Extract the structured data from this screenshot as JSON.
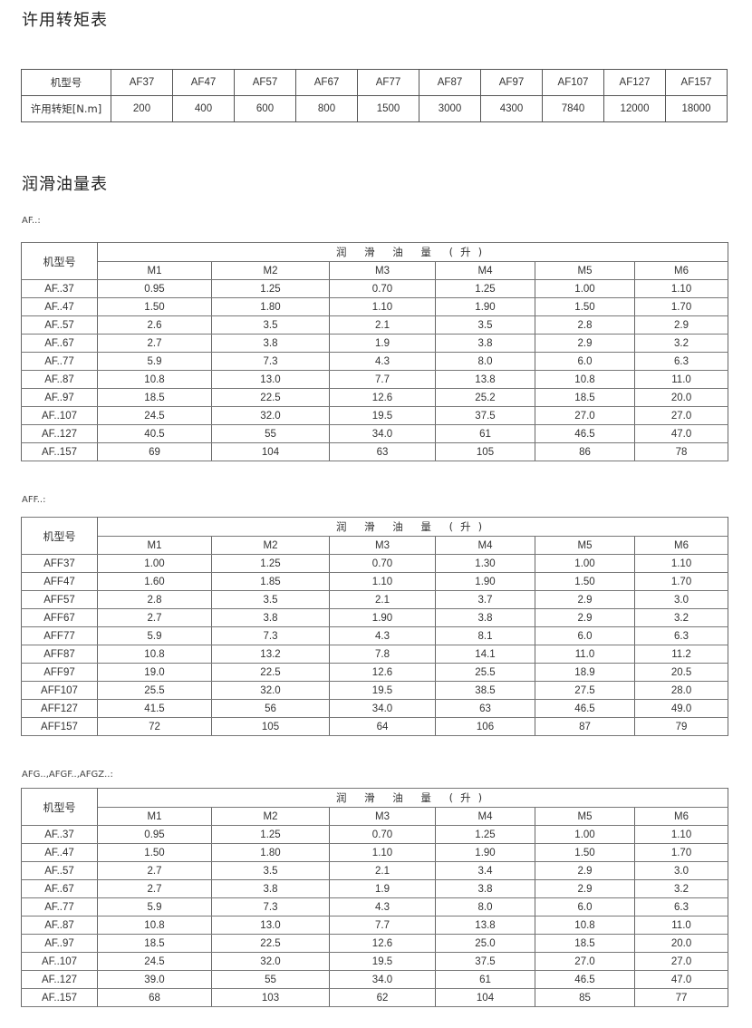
{
  "torque_section": {
    "title": "许用转矩表",
    "row_header_model": "机型号",
    "row_header_torque": "许用转矩[N.m]",
    "models": [
      "AF37",
      "AF47",
      "AF57",
      "AF67",
      "AF77",
      "AF87",
      "AF97",
      "AF107",
      "AF127",
      "AF157"
    ],
    "torques": [
      "200",
      "400",
      "600",
      "800",
      "1500",
      "3000",
      "4300",
      "7840",
      "12000",
      "18000"
    ]
  },
  "oil_section": {
    "title": "润滑油量表",
    "tables": [
      {
        "label": "AF..:",
        "model_header": "机型号",
        "group_header": "润 滑 油 量 (升)",
        "columns": [
          "M1",
          "M2",
          "M3",
          "M4",
          "M5",
          "M6"
        ],
        "rows": [
          {
            "model": "AF..37",
            "values": [
              "0.95",
              "1.25",
              "0.70",
              "1.25",
              "1.00",
              "1.10"
            ]
          },
          {
            "model": "AF..47",
            "values": [
              "1.50",
              "1.80",
              "1.10",
              "1.90",
              "1.50",
              "1.70"
            ]
          },
          {
            "model": "AF..57",
            "values": [
              "2.6",
              "3.5",
              "2.1",
              "3.5",
              "2.8",
              "2.9"
            ]
          },
          {
            "model": "AF..67",
            "values": [
              "2.7",
              "3.8",
              "1.9",
              "3.8",
              "2.9",
              "3.2"
            ]
          },
          {
            "model": "AF..77",
            "values": [
              "5.9",
              "7.3",
              "4.3",
              "8.0",
              "6.0",
              "6.3"
            ]
          },
          {
            "model": "AF..87",
            "values": [
              "10.8",
              "13.0",
              "7.7",
              "13.8",
              "10.8",
              "11.0"
            ]
          },
          {
            "model": "AF..97",
            "values": [
              "18.5",
              "22.5",
              "12.6",
              "25.2",
              "18.5",
              "20.0"
            ]
          },
          {
            "model": "AF..107",
            "values": [
              "24.5",
              "32.0",
              "19.5",
              "37.5",
              "27.0",
              "27.0"
            ]
          },
          {
            "model": "AF..127",
            "values": [
              "40.5",
              "55",
              "34.0",
              "61",
              "46.5",
              "47.0"
            ]
          },
          {
            "model": "AF..157",
            "values": [
              "69",
              "104",
              "63",
              "105",
              "86",
              "78"
            ]
          }
        ]
      },
      {
        "label": "AFF..:",
        "model_header": "机型号",
        "group_header": "润 滑 油 量 (升)",
        "columns": [
          "M1",
          "M2",
          "M3",
          "M4",
          "M5",
          "M6"
        ],
        "rows": [
          {
            "model": "AFF37",
            "values": [
              "1.00",
              "1.25",
              "0.70",
              "1.30",
              "1.00",
              "1.10"
            ]
          },
          {
            "model": "AFF47",
            "values": [
              "1.60",
              "1.85",
              "1.10",
              "1.90",
              "1.50",
              "1.70"
            ]
          },
          {
            "model": "AFF57",
            "values": [
              "2.8",
              "3.5",
              "2.1",
              "3.7",
              "2.9",
              "3.0"
            ]
          },
          {
            "model": "AFF67",
            "values": [
              "2.7",
              "3.8",
              "1.90",
              "3.8",
              "2.9",
              "3.2"
            ]
          },
          {
            "model": "AFF77",
            "values": [
              "5.9",
              "7.3",
              "4.3",
              "8.1",
              "6.0",
              "6.3"
            ]
          },
          {
            "model": "AFF87",
            "values": [
              "10.8",
              "13.2",
              "7.8",
              "14.1",
              "11.0",
              "11.2"
            ]
          },
          {
            "model": "AFF97",
            "values": [
              "19.0",
              "22.5",
              "12.6",
              "25.5",
              "18.9",
              "20.5"
            ]
          },
          {
            "model": "AFF107",
            "values": [
              "25.5",
              "32.0",
              "19.5",
              "38.5",
              "27.5",
              "28.0"
            ]
          },
          {
            "model": "AFF127",
            "values": [
              "41.5",
              "56",
              "34.0",
              "63",
              "46.5",
              "49.0"
            ]
          },
          {
            "model": "AFF157",
            "values": [
              "72",
              "105",
              "64",
              "106",
              "87",
              "79"
            ]
          }
        ]
      },
      {
        "label": "AFG..,AFGF..,AFGZ..:",
        "model_header": "机型号",
        "group_header": "润 滑 油 量 (升)",
        "columns": [
          "M1",
          "M2",
          "M3",
          "M4",
          "M5",
          "M6"
        ],
        "rows": [
          {
            "model": "AF..37",
            "values": [
              "0.95",
              "1.25",
              "0.70",
              "1.25",
              "1.00",
              "1.10"
            ]
          },
          {
            "model": "AF..47",
            "values": [
              "1.50",
              "1.80",
              "1.10",
              "1.90",
              "1.50",
              "1.70"
            ]
          },
          {
            "model": "AF..57",
            "values": [
              "2.7",
              "3.5",
              "2.1",
              "3.4",
              "2.9",
              "3.0"
            ]
          },
          {
            "model": "AF..67",
            "values": [
              "2.7",
              "3.8",
              "1.9",
              "3.8",
              "2.9",
              "3.2"
            ]
          },
          {
            "model": "AF..77",
            "values": [
              "5.9",
              "7.3",
              "4.3",
              "8.0",
              "6.0",
              "6.3"
            ]
          },
          {
            "model": "AF..87",
            "values": [
              "10.8",
              "13.0",
              "7.7",
              "13.8",
              "10.8",
              "11.0"
            ]
          },
          {
            "model": "AF..97",
            "values": [
              "18.5",
              "22.5",
              "12.6",
              "25.0",
              "18.5",
              "20.0"
            ]
          },
          {
            "model": "AF..107",
            "values": [
              "24.5",
              "32.0",
              "19.5",
              "37.5",
              "27.0",
              "27.0"
            ]
          },
          {
            "model": "AF..127",
            "values": [
              "39.0",
              "55",
              "34.0",
              "61",
              "46.5",
              "47.0"
            ]
          },
          {
            "model": "AF..157",
            "values": [
              "68",
              "103",
              "62",
              "104",
              "85",
              "77"
            ]
          }
        ]
      }
    ]
  }
}
